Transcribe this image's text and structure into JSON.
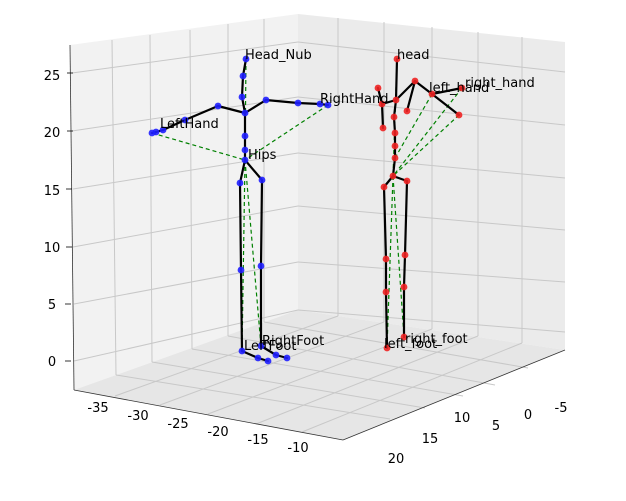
{
  "chart_data": {
    "type": "scatter",
    "projection": "3d",
    "grid": true,
    "axes": {
      "x": {
        "ticks": [
          "-35",
          "-30",
          "-25",
          "-20",
          "-15",
          "-10"
        ]
      },
      "y": {
        "ticks": [
          "20",
          "15",
          "10",
          "5",
          "0",
          "-5"
        ]
      },
      "z": {
        "ticks": [
          "0",
          "5",
          "10",
          "15",
          "20",
          "25"
        ]
      }
    },
    "series": [
      {
        "color": "#1f1fff",
        "labels": [
          "Head_Nub",
          "RightHand",
          "LeftHand",
          "Hips",
          "RightFoot",
          "LeftFoot"
        ],
        "label_points": [
          [
            0,
            0
          ],
          [
            0,
            0
          ],
          [
            0,
            0
          ],
          [
            0,
            0
          ],
          [
            0,
            0
          ],
          [
            0,
            0
          ]
        ]
      },
      {
        "color": "#ee2222",
        "labels": [
          "head",
          "left_hand",
          "right_hand",
          "right_foot",
          "left_foot"
        ]
      }
    ],
    "skeleton_color": "#000000",
    "correspondence_color": "#008000"
  }
}
